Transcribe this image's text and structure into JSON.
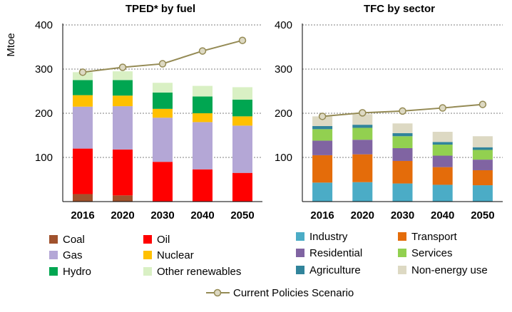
{
  "ylabel": "Mtoe",
  "colors": {
    "coal": "#a0522d",
    "oil": "#ff0000",
    "gas": "#b4a7d6",
    "nuclear": "#ffc000",
    "hydro": "#00a651",
    "other_renewables": "#d9f0c4",
    "industry": "#4bacc6",
    "transport": "#e46c0a",
    "residential": "#8064a2",
    "services": "#92d050",
    "agriculture": "#31849b",
    "non_energy_use": "#ddd9c3",
    "line": "#948a54",
    "marker_fill": "#ddd9c3"
  },
  "chart_data": [
    {
      "type": "bar",
      "stacked": true,
      "title": "TPED* by fuel",
      "ylabel": "Mtoe",
      "ylim": [
        0,
        400
      ],
      "yticks": [
        "100",
        "200",
        "300",
        "400"
      ],
      "grid": true,
      "categories": [
        "2016",
        "2020",
        "2030",
        "2040",
        "2050"
      ],
      "series": [
        {
          "name": "Coal",
          "color": "coal",
          "values": [
            17,
            14,
            0,
            0,
            0
          ]
        },
        {
          "name": "Oil",
          "color": "oil",
          "values": [
            103,
            104,
            90,
            73,
            65
          ]
        },
        {
          "name": "Gas",
          "color": "gas",
          "values": [
            95,
            98,
            100,
            107,
            107
          ]
        },
        {
          "name": "Nuclear",
          "color": "nuclear",
          "values": [
            26,
            24,
            20,
            20,
            21
          ]
        },
        {
          "name": "Hydro",
          "color": "hydro",
          "values": [
            34,
            35,
            37,
            38,
            38
          ]
        },
        {
          "name": "Other renewables",
          "color": "other_renewables",
          "values": [
            18,
            20,
            22,
            24,
            28
          ]
        }
      ],
      "line": {
        "name": "Current Policies Scenario",
        "values": [
          293,
          304,
          312,
          341,
          365
        ]
      }
    },
    {
      "type": "bar",
      "stacked": true,
      "title": "TFC by sector",
      "ylim": [
        0,
        400
      ],
      "yticks": [
        "100",
        "200",
        "300",
        "400"
      ],
      "grid": true,
      "categories": [
        "2016",
        "2020",
        "2030",
        "2040",
        "2050"
      ],
      "series": [
        {
          "name": "Industry",
          "color": "industry",
          "values": [
            43,
            44,
            41,
            38,
            37
          ]
        },
        {
          "name": "Transport",
          "color": "transport",
          "values": [
            62,
            63,
            51,
            40,
            34
          ]
        },
        {
          "name": "Residential",
          "color": "residential",
          "values": [
            33,
            33,
            29,
            26,
            24
          ]
        },
        {
          "name": "Services",
          "color": "services",
          "values": [
            26,
            27,
            27,
            25,
            22
          ]
        },
        {
          "name": "Agriculture",
          "color": "agriculture",
          "values": [
            7,
            7,
            7,
            6,
            6
          ]
        },
        {
          "name": "Non-energy use",
          "color": "non_energy_use",
          "values": [
            22,
            24,
            22,
            23,
            25
          ]
        }
      ],
      "line": {
        "name": "Current Policies Scenario",
        "values": [
          193,
          201,
          205,
          212,
          220
        ]
      }
    }
  ],
  "legend_left": [
    {
      "label": "Coal",
      "color": "coal"
    },
    {
      "label": "Oil",
      "color": "oil"
    },
    {
      "label": "Gas",
      "color": "gas"
    },
    {
      "label": "Nuclear",
      "color": "nuclear"
    },
    {
      "label": "Hydro",
      "color": "hydro"
    },
    {
      "label": "Other renewables",
      "color": "other_renewables"
    }
  ],
  "legend_right": [
    {
      "label": "Industry",
      "color": "industry"
    },
    {
      "label": "Transport",
      "color": "transport"
    },
    {
      "label": "Residential",
      "color": "residential"
    },
    {
      "label": "Services",
      "color": "services"
    },
    {
      "label": "Agriculture",
      "color": "agriculture"
    },
    {
      "label": "Non-energy use",
      "color": "non_energy_use"
    }
  ],
  "legend_line": {
    "label": "Current Policies Scenario"
  }
}
